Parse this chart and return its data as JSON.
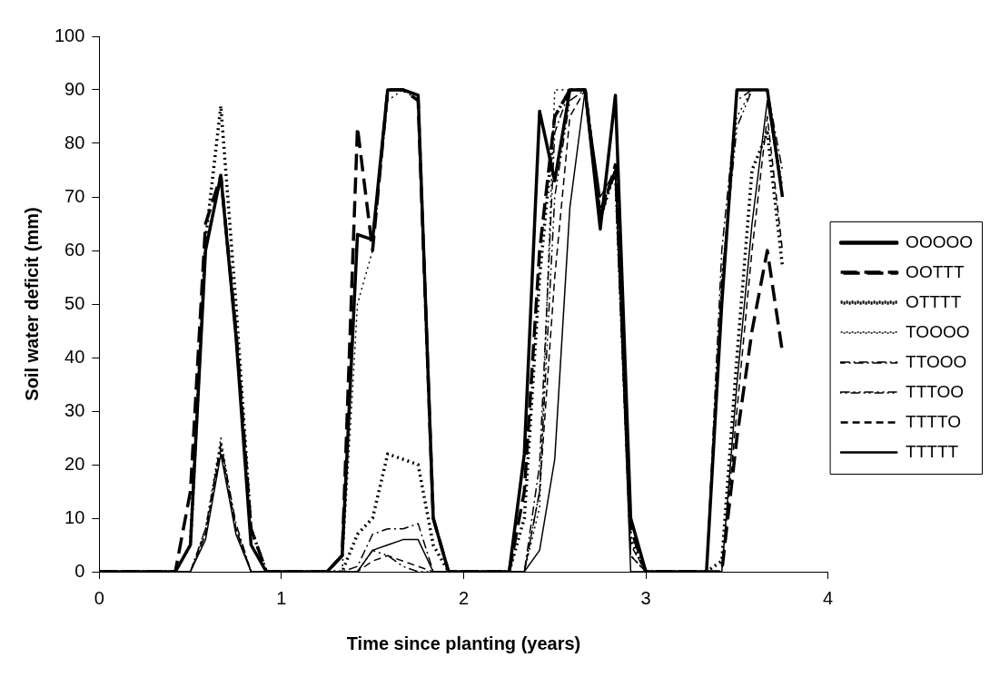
{
  "chart_data": {
    "type": "line",
    "xlabel": "Time since planting (years)",
    "ylabel": "Soil water deficit (mm)",
    "x": [
      0,
      0.083,
      0.167,
      0.25,
      0.333,
      0.417,
      0.5,
      0.583,
      0.667,
      0.75,
      0.833,
      0.917,
      1.0,
      1.083,
      1.167,
      1.25,
      1.333,
      1.417,
      1.5,
      1.583,
      1.667,
      1.75,
      1.833,
      1.917,
      2.0,
      2.083,
      2.167,
      2.25,
      2.333,
      2.417,
      2.5,
      2.583,
      2.667,
      2.75,
      2.833,
      2.917,
      3.0,
      3.083,
      3.167,
      3.25,
      3.333,
      3.417,
      3.5,
      3.583,
      3.667,
      3.75
    ],
    "xlim": [
      0,
      4
    ],
    "xticks": [
      0,
      1,
      2,
      3,
      4
    ],
    "ylim": [
      0,
      100
    ],
    "yticks": [
      0,
      10,
      20,
      30,
      40,
      50,
      60,
      70,
      80,
      90,
      100
    ],
    "grid": false,
    "legend": "right",
    "marker": "none",
    "series": [
      {
        "name": "OOOOO",
        "color": "#000000",
        "line_style": "solid",
        "values": [
          0,
          0,
          0,
          0,
          0,
          0,
          5,
          60,
          74,
          44,
          5,
          0,
          0,
          0,
          0,
          0,
          3,
          63,
          62,
          90,
          90,
          89,
          10,
          0,
          0,
          0,
          0,
          0,
          22,
          86,
          73,
          90,
          90,
          64,
          89,
          10,
          0,
          0,
          0,
          0,
          0,
          50,
          90,
          90,
          90,
          70
        ]
      },
      {
        "name": "OOTTT",
        "color": "#000000",
        "line_style": "dashed",
        "values": [
          0,
          0,
          0,
          0,
          0,
          0,
          15,
          65,
          74,
          45,
          8,
          0,
          0,
          0,
          0,
          0,
          3,
          83,
          60,
          90,
          90,
          88,
          10,
          0,
          0,
          0,
          0,
          0,
          15,
          60,
          85,
          90,
          90,
          66,
          76,
          8,
          0,
          0,
          0,
          0,
          0,
          0,
          25,
          45,
          60,
          41
        ]
      },
      {
        "name": "OTTTT",
        "color": "#000000",
        "line_style": "dotted",
        "values": [
          0,
          0,
          0,
          0,
          0,
          0,
          5,
          62,
          87,
          50,
          8,
          0,
          0,
          0,
          0,
          0,
          0,
          7,
          10,
          22,
          21,
          20,
          5,
          0,
          0,
          0,
          0,
          0,
          10,
          55,
          85,
          90,
          90,
          66,
          75,
          6,
          0,
          0,
          0,
          0,
          0,
          2,
          40,
          75,
          82,
          57
        ]
      },
      {
        "name": "TOOOO",
        "color": "#000000",
        "line_style": "dotted",
        "values": [
          0,
          0,
          0,
          0,
          0,
          0,
          0,
          8,
          25,
          8,
          0,
          0,
          0,
          0,
          0,
          0,
          0,
          50,
          60,
          88,
          90,
          88,
          10,
          0,
          0,
          0,
          0,
          0,
          0,
          12,
          90,
          90,
          90,
          68,
          74,
          3,
          0,
          0,
          0,
          0,
          0,
          55,
          85,
          90,
          90,
          72
        ]
      },
      {
        "name": "TTOOO",
        "color": "#000000",
        "line_style": "dashdot",
        "values": [
          0,
          0,
          0,
          0,
          0,
          0,
          0,
          8,
          24,
          9,
          0,
          0,
          0,
          0,
          0,
          0,
          0,
          1,
          7,
          8,
          8,
          9,
          0,
          0,
          0,
          0,
          0,
          0,
          0,
          20,
          82,
          90,
          90,
          68,
          74,
          3,
          0,
          0,
          0,
          0,
          0,
          60,
          88,
          90,
          90,
          75
        ]
      },
      {
        "name": "TTTOO",
        "color": "#000000",
        "line_style": "dashdotdot",
        "values": [
          0,
          0,
          0,
          0,
          0,
          0,
          0,
          7,
          23,
          8,
          0,
          0,
          0,
          0,
          0,
          0,
          0,
          0,
          4,
          3,
          1,
          0,
          0,
          0,
          0,
          0,
          0,
          0,
          0,
          15,
          70,
          88,
          90,
          68,
          74,
          3,
          0,
          0,
          0,
          0,
          0,
          55,
          83,
          90,
          90,
          70
        ]
      },
      {
        "name": "TTTTO",
        "color": "#000000",
        "line_style": "dashed",
        "values": [
          0,
          0,
          0,
          0,
          0,
          0,
          0,
          7,
          23,
          8,
          0,
          0,
          0,
          0,
          0,
          0,
          0,
          0,
          2,
          3,
          2,
          1,
          0,
          0,
          0,
          0,
          0,
          0,
          0,
          15,
          55,
          85,
          90,
          67,
          75,
          5,
          0,
          0,
          0,
          0,
          0,
          0,
          30,
          60,
          85,
          60
        ]
      },
      {
        "name": "TTTTT",
        "color": "#000000",
        "line_style": "solid",
        "values": [
          0,
          0,
          0,
          0,
          0,
          0,
          0,
          6,
          22,
          7,
          0,
          0,
          0,
          0,
          0,
          0,
          0,
          0,
          4,
          5,
          6,
          6,
          0,
          0,
          0,
          0,
          0,
          0,
          0,
          4,
          21,
          68,
          90,
          70,
          75,
          0,
          0,
          0,
          0,
          0,
          0,
          0,
          35,
          65,
          88,
          70
        ]
      }
    ]
  }
}
